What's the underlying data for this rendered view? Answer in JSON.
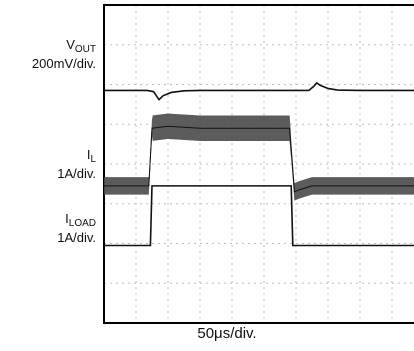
{
  "chart_data": {
    "type": "line",
    "xlabel": "50μs/div.",
    "time_divisions": 10,
    "vertical_divisions": 8,
    "traces": [
      {
        "name_main": "V",
        "name_sub": "OUT",
        "scale": "200mV/div.",
        "color": "#111111",
        "points": [
          [
            0,
            2.15
          ],
          [
            1.35,
            2.15
          ],
          [
            1.55,
            2.18
          ],
          [
            1.65,
            2.3
          ],
          [
            1.72,
            2.38
          ],
          [
            1.85,
            2.28
          ],
          [
            2.1,
            2.2
          ],
          [
            2.5,
            2.16
          ],
          [
            3.0,
            2.15
          ],
          [
            5.7,
            2.15
          ],
          [
            6.4,
            2.15
          ],
          [
            6.55,
            2.05
          ],
          [
            6.65,
            1.96
          ],
          [
            6.75,
            2.02
          ],
          [
            7.0,
            2.1
          ],
          [
            7.3,
            2.14
          ],
          [
            8.0,
            2.15
          ],
          [
            10,
            2.15
          ]
        ]
      },
      {
        "name_main": "I",
        "name_sub": "L",
        "scale": "1A/div.",
        "color": "#111111",
        "noisy": true,
        "points": [
          [
            0,
            4.55
          ],
          [
            1.4,
            4.55
          ],
          [
            1.5,
            3.1
          ],
          [
            2.0,
            3.05
          ],
          [
            3.0,
            3.1
          ],
          [
            5.8,
            3.1
          ],
          [
            5.95,
            4.7
          ],
          [
            6.1,
            4.65
          ],
          [
            6.5,
            4.55
          ],
          [
            10,
            4.55
          ]
        ]
      },
      {
        "name_main": "I",
        "name_sub": "LOAD",
        "scale": "1A/div.",
        "color": "#111111",
        "points": [
          [
            0,
            6.05
          ],
          [
            1.45,
            6.05
          ],
          [
            1.5,
            4.55
          ],
          [
            2.0,
            4.55
          ],
          [
            5.85,
            4.55
          ],
          [
            5.9,
            6.05
          ],
          [
            6.0,
            6.05
          ],
          [
            10,
            6.05
          ]
        ]
      }
    ],
    "grid": true
  }
}
